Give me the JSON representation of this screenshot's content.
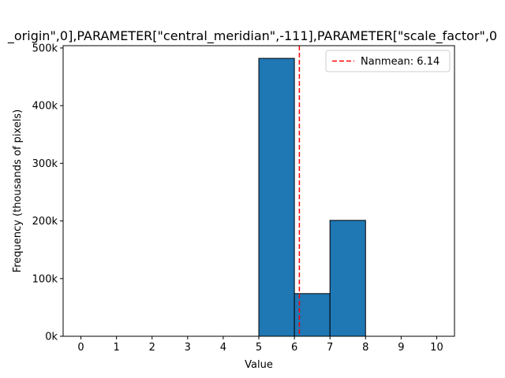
{
  "chart_data": {
    "type": "bar",
    "title": "_origin\",0],PARAMETER[\"central_meridian\",-111],PARAMETER[\"scale_factor\",0",
    "xlabel": "Value",
    "ylabel": "Frequency (thousands of pixels)",
    "xlim": [
      -0.5,
      10.5
    ],
    "ylim": [
      0,
      504000
    ],
    "x_ticks": [
      0,
      1,
      2,
      3,
      4,
      5,
      6,
      7,
      8,
      9,
      10
    ],
    "x_tick_labels": [
      "0",
      "1",
      "2",
      "3",
      "4",
      "5",
      "6",
      "7",
      "8",
      "9",
      "10"
    ],
    "y_ticks": [
      0,
      100000,
      200000,
      300000,
      400000,
      500000
    ],
    "y_tick_labels": [
      "0k",
      "100k",
      "200k",
      "300k",
      "400k",
      "500k"
    ],
    "bins": [
      {
        "start": 5,
        "end": 6,
        "count": 482000
      },
      {
        "start": 6,
        "end": 7,
        "count": 74000
      },
      {
        "start": 7,
        "end": 8,
        "count": 201000
      }
    ],
    "mean_line": {
      "value": 6.14,
      "label": "Nanmean: 6.14",
      "color": "#ff0000"
    },
    "bar_color": "#1f77b4",
    "bar_edge_color": "#000000",
    "legend_position": "upper-right",
    "grid": false
  }
}
